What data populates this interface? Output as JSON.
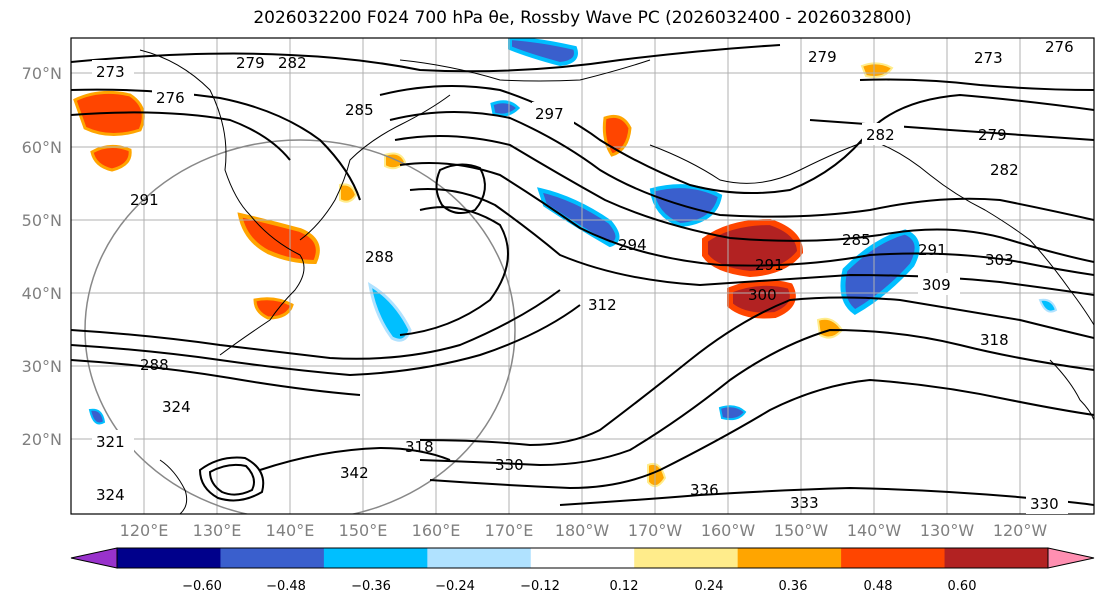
{
  "title": "2026032200 F024 700 hPa θe, Rossby Wave PC (2026032400 - 2026032800)",
  "lat_labels": [
    "70°N",
    "60°N",
    "50°N",
    "40°N",
    "30°N",
    "20°N"
  ],
  "lon_labels": [
    "120°E",
    "130°E",
    "140°E",
    "150°E",
    "160°E",
    "170°E",
    "180°W",
    "170°W",
    "160°W",
    "150°W",
    "140°W",
    "130°W",
    "120°W"
  ],
  "contour_labels": [
    "273",
    "276",
    "279",
    "282",
    "285",
    "297",
    "282",
    "279",
    "282",
    "291",
    "288",
    "294",
    "285",
    "291",
    "291",
    "303",
    "309",
    "312",
    "300",
    "318",
    "288",
    "324",
    "321",
    "324",
    "342",
    "318",
    "330",
    "336",
    "333",
    "330",
    "279",
    "273",
    "276"
  ],
  "colorbar": {
    "ticks": [
      "−0.60",
      "−0.48",
      "−0.36",
      "−0.24",
      "−0.12",
      "0.12",
      "0.24",
      "0.36",
      "0.48",
      "0.60"
    ],
    "colors": [
      "#9932cc",
      "#00008b",
      "#3a5fcd",
      "#00bfff",
      "#b0e2ff",
      "#ffffff",
      "#ffec8b",
      "#ffa500",
      "#ff4500",
      "#b22222",
      "#ff8fb1"
    ]
  },
  "shading_colors": {
    "blue_strong": "#3a5fcd",
    "blue": "#00bfff",
    "blue_light": "#b0e2ff",
    "yellow": "#ffec8b",
    "orange": "#ffa500",
    "red": "#ff4500",
    "dark_red": "#b22222",
    "pink": "#ff8fb1"
  }
}
